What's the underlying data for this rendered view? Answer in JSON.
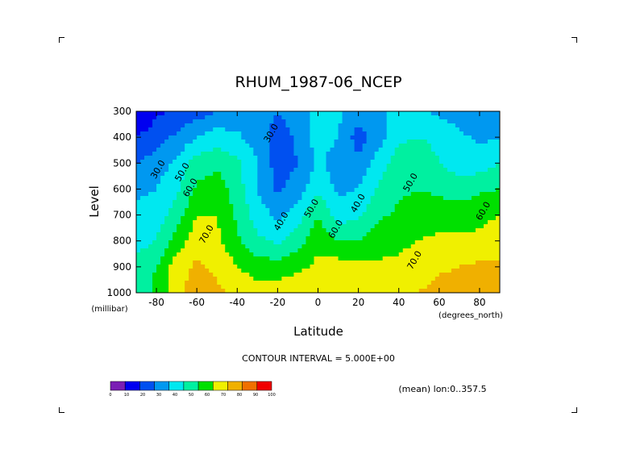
{
  "chart_data": {
    "type": "heatmap",
    "title": "RHUM_1987-06_NCEP",
    "xlabel": "Latitude",
    "ylabel": "Level",
    "x_unit": "(degrees_north)",
    "y_unit": "(millibar)",
    "xlim": [
      -90,
      90
    ],
    "ylim": [
      1000,
      300
    ],
    "x_ticks": [
      -80,
      -60,
      -40,
      -20,
      0,
      20,
      40,
      60,
      80
    ],
    "y_ticks": [
      300,
      400,
      500,
      600,
      700,
      800,
      900,
      1000
    ],
    "x_tick_labels": [
      "-80",
      "-60",
      "-40",
      "-20",
      "0",
      "20",
      "40",
      "60",
      "80"
    ],
    "y_tick_labels": [
      "300",
      "400",
      "500",
      "600",
      "700",
      "800",
      "900",
      "1000"
    ],
    "contour_interval_text": "CONTOUR INTERVAL = 5.000E+00",
    "subset_text": "(mean) lon:0..357.5",
    "colorbar": {
      "levels": [
        "0",
        "10",
        "20",
        "30",
        "40",
        "50",
        "60",
        "70",
        "80",
        "90",
        "100"
      ],
      "colors": [
        "#7a1fb4",
        "#0000f0",
        "#0050f0",
        "#0098f0",
        "#00e8f0",
        "#00f0a0",
        "#00e000",
        "#f0f000",
        "#f0b000",
        "#f07000",
        "#f00000"
      ]
    },
    "contour_labels": [
      {
        "text": "30.0",
        "x": -22,
        "y": 390
      },
      {
        "text": "30.0",
        "x": -78,
        "y": 530
      },
      {
        "text": "50.0",
        "x": -66,
        "y": 540
      },
      {
        "text": "60.0",
        "x": -62,
        "y": 600
      },
      {
        "text": "70.0",
        "x": -54,
        "y": 780
      },
      {
        "text": "40.0",
        "x": -17,
        "y": 730
      },
      {
        "text": "50.0",
        "x": -2,
        "y": 680
      },
      {
        "text": "60.0",
        "x": 10,
        "y": 760
      },
      {
        "text": "40.0",
        "x": 21,
        "y": 660
      },
      {
        "text": "50.0",
        "x": 47,
        "y": 580
      },
      {
        "text": "70.0",
        "x": 49,
        "y": 880
      },
      {
        "text": "60.0",
        "x": 83,
        "y": 690
      }
    ],
    "grid_lat": [
      -90,
      -80,
      -70,
      -60,
      -50,
      -40,
      -30,
      -20,
      -10,
      0,
      10,
      20,
      30,
      40,
      50,
      60,
      70,
      80,
      90
    ],
    "grid_lev": [
      300,
      400,
      500,
      600,
      700,
      800,
      900,
      1000
    ],
    "values": [
      [
        10,
        18,
        22,
        25,
        30,
        32,
        35,
        30,
        35,
        45,
        42,
        35,
        35,
        45,
        42,
        38,
        35,
        30,
        35
      ],
      [
        20,
        25,
        32,
        40,
        45,
        42,
        35,
        25,
        32,
        45,
        40,
        25,
        35,
        48,
        50,
        48,
        42,
        38,
        40
      ],
      [
        30,
        35,
        42,
        55,
        58,
        52,
        40,
        25,
        30,
        42,
        35,
        32,
        45,
        55,
        55,
        50,
        45,
        45,
        50
      ],
      [
        38,
        40,
        48,
        62,
        65,
        55,
        40,
        28,
        35,
        48,
        38,
        40,
        52,
        58,
        60,
        58,
        55,
        58,
        60
      ],
      [
        42,
        45,
        55,
        70,
        70,
        58,
        45,
        38,
        45,
        60,
        45,
        48,
        58,
        62,
        65,
        65,
        65,
        68,
        70
      ],
      [
        45,
        50,
        65,
        75,
        72,
        62,
        52,
        48,
        55,
        68,
        60,
        60,
        65,
        68,
        70,
        72,
        72,
        72,
        75
      ],
      [
        55,
        60,
        75,
        82,
        78,
        70,
        65,
        65,
        68,
        72,
        75,
        72,
        72,
        72,
        75,
        78,
        80,
        82,
        82
      ],
      [
        55,
        62,
        78,
        85,
        82,
        78,
        75,
        75,
        76,
        78,
        80,
        78,
        78,
        78,
        80,
        84,
        86,
        88,
        88
      ]
    ]
  }
}
